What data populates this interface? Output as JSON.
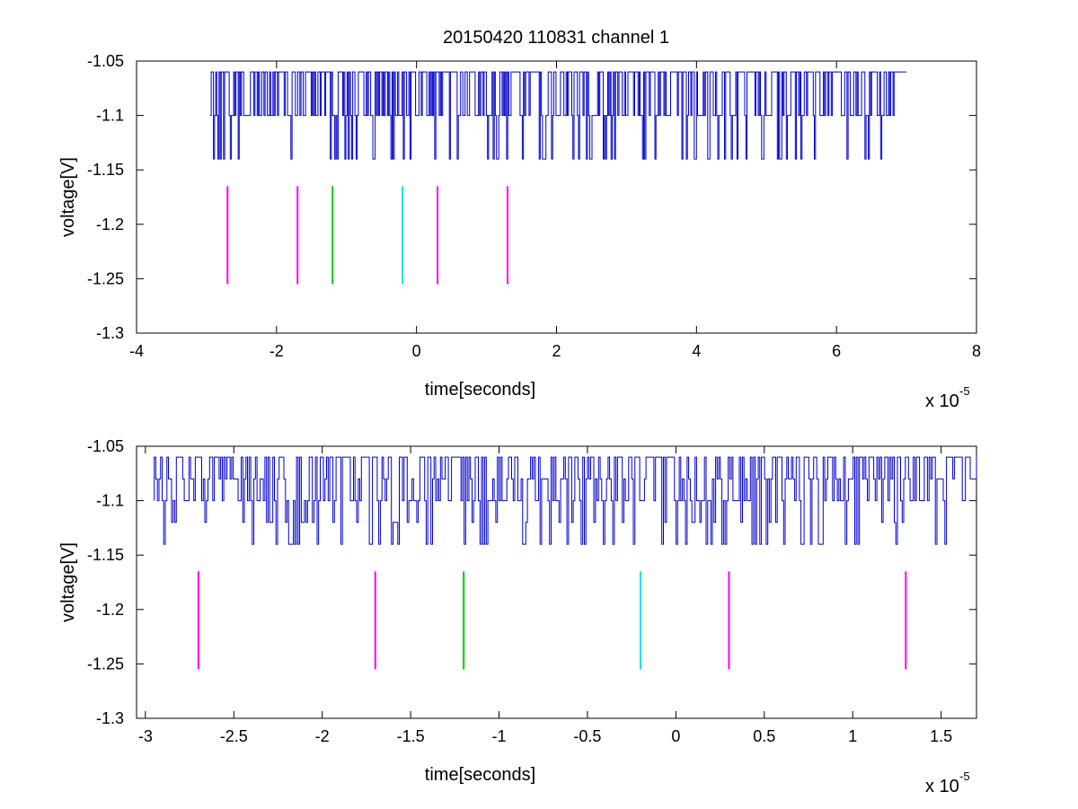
{
  "chart_data": [
    {
      "type": "line",
      "title": "20150420 110831 channel 1",
      "xlabel": "time[seconds]",
      "ylabel": "voltage[V]",
      "x_multiplier": "x 10",
      "x_exponent": "-5",
      "xlim": [
        -4,
        8
      ],
      "ylim": [
        -1.3,
        -1.05
      ],
      "xticks": [
        -4,
        -2,
        0,
        2,
        4,
        6,
        8
      ],
      "xtick_labels": [
        "-4",
        "-2",
        "0",
        "2",
        "4",
        "6",
        "8"
      ],
      "yticks": [
        -1.3,
        -1.25,
        -1.2,
        -1.15,
        -1.1,
        -1.05
      ],
      "ytick_labels": [
        "-1.3",
        "-1.25",
        "-1.2",
        "-1.15",
        "-1.1",
        "-1.05"
      ],
      "grid": false,
      "series": [
        {
          "color": "#0000cc",
          "x_range": [
            -2.95,
            7.0
          ],
          "levels": [
            -1.06,
            -1.1,
            -1.14
          ],
          "baseline": -1.1
        }
      ],
      "markers": [
        {
          "x": -2.7,
          "y_range": [
            -1.255,
            -1.165
          ],
          "color": "#ff00ff"
        },
        {
          "x": -1.7,
          "y_range": [
            -1.255,
            -1.165
          ],
          "color": "#ff00ff"
        },
        {
          "x": -1.2,
          "y_range": [
            -1.255,
            -1.165
          ],
          "color": "#00cc00"
        },
        {
          "x": -0.2,
          "y_range": [
            -1.255,
            -1.165
          ],
          "color": "#00e5e5"
        },
        {
          "x": 0.3,
          "y_range": [
            -1.255,
            -1.165
          ],
          "color": "#ff00ff"
        },
        {
          "x": 1.3,
          "y_range": [
            -1.255,
            -1.165
          ],
          "color": "#ff00ff"
        }
      ]
    },
    {
      "type": "line",
      "title": "",
      "xlabel": "time[seconds]",
      "ylabel": "voltage[V]",
      "x_multiplier": "x 10",
      "x_exponent": "-5",
      "xlim": [
        -3.05,
        1.7
      ],
      "ylim": [
        -1.3,
        -1.05
      ],
      "xticks": [
        -3,
        -2.5,
        -2,
        -1.5,
        -1,
        -0.5,
        0,
        0.5,
        1,
        1.5
      ],
      "xtick_labels": [
        "-3",
        "-2.5",
        "-2",
        "-1.5",
        "-1",
        "-0.5",
        "0",
        "0.5",
        "1",
        "1.5"
      ],
      "yticks": [
        -1.3,
        -1.25,
        -1.2,
        -1.15,
        -1.1,
        -1.05
      ],
      "ytick_labels": [
        "-1.3",
        "-1.25",
        "-1.2",
        "-1.15",
        "-1.1",
        "-1.05"
      ],
      "grid": false,
      "series": [
        {
          "color": "#0000cc",
          "x_range": [
            -2.95,
            1.7
          ],
          "levels": [
            -1.06,
            -1.08,
            -1.1,
            -1.12,
            -1.14
          ],
          "baseline": -1.1
        }
      ],
      "markers": [
        {
          "x": -2.7,
          "y_range": [
            -1.255,
            -1.165
          ],
          "color": "#ff00ff"
        },
        {
          "x": -1.7,
          "y_range": [
            -1.255,
            -1.165
          ],
          "color": "#ff00ff"
        },
        {
          "x": -1.2,
          "y_range": [
            -1.255,
            -1.165
          ],
          "color": "#00cc00"
        },
        {
          "x": -0.2,
          "y_range": [
            -1.255,
            -1.165
          ],
          "color": "#00e5e5"
        },
        {
          "x": 0.3,
          "y_range": [
            -1.255,
            -1.165
          ],
          "color": "#ff00ff"
        },
        {
          "x": 1.3,
          "y_range": [
            -1.255,
            -1.165
          ],
          "color": "#ff00ff"
        }
      ]
    }
  ]
}
